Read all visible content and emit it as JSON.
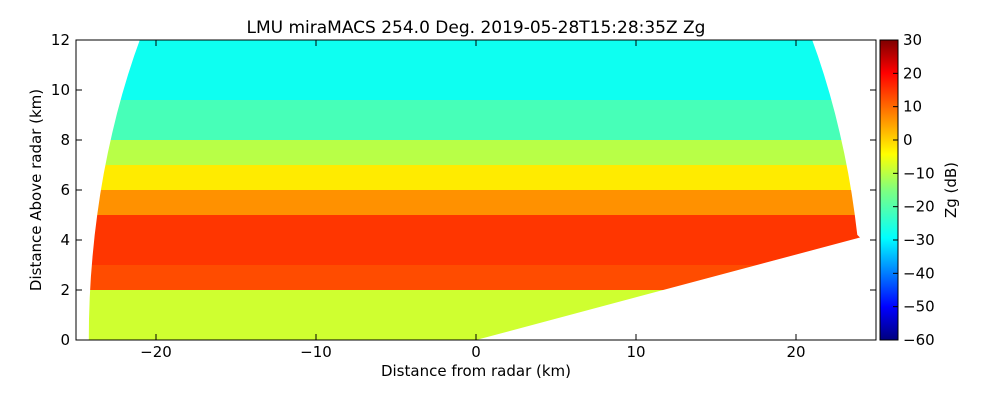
{
  "chart_data": {
    "type": "heatmap",
    "title": "LMU miraMACS 254.0 Deg. 2019-05-28T15:28:35Z  Zg",
    "xlabel": "Distance from radar (km)",
    "ylabel": "Distance Above radar  (km)",
    "xlim": [
      -25,
      25
    ],
    "ylim": [
      0,
      12
    ],
    "x_ticks": [
      -20,
      -10,
      0,
      10,
      20
    ],
    "y_ticks": [
      0,
      2,
      4,
      6,
      8,
      10,
      12
    ],
    "colorbar": {
      "label": "Zg (dB)",
      "range": [
        -60,
        30
      ],
      "ticks": [
        30,
        20,
        10,
        0,
        -10,
        -20,
        -30,
        -40,
        -50,
        -60
      ],
      "colormap": "jet"
    },
    "scan": {
      "azimuth_deg": 254.0,
      "timestamp": "2019-05-28T15:28:35Z",
      "max_range_km": 24.2,
      "ground_line_to_km": [
        24,
        4.1
      ]
    },
    "layers": [
      {
        "top_km": 12.0,
        "bottom_km": 9.6,
        "zg_db": -25
      },
      {
        "top_km": 9.6,
        "bottom_km": 8.0,
        "zg_db": -20
      },
      {
        "top_km": 8.0,
        "bottom_km": 7.0,
        "zg_db": -10
      },
      {
        "top_km": 7.0,
        "bottom_km": 6.0,
        "zg_db": -2
      },
      {
        "top_km": 6.0,
        "bottom_km": 5.0,
        "zg_db": 6
      },
      {
        "top_km": 5.0,
        "bottom_km": 3.0,
        "zg_db": 14
      },
      {
        "top_km": 3.0,
        "bottom_km": 2.0,
        "zg_db": 12
      },
      {
        "top_km": 2.0,
        "bottom_km": 0.0,
        "zg_db": -8
      }
    ]
  }
}
